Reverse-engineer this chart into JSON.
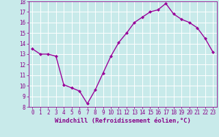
{
  "x": [
    0,
    1,
    2,
    3,
    4,
    5,
    6,
    7,
    8,
    9,
    10,
    11,
    12,
    13,
    14,
    15,
    16,
    17,
    18,
    19,
    20,
    21,
    22,
    23
  ],
  "y": [
    13.5,
    13.0,
    13.0,
    12.8,
    10.1,
    9.8,
    9.5,
    8.3,
    9.6,
    11.2,
    12.8,
    14.1,
    15.0,
    16.0,
    16.5,
    17.0,
    17.2,
    17.8,
    16.8,
    16.3,
    16.0,
    15.5,
    14.5,
    13.2
  ],
  "line_color": "#990099",
  "marker": "D",
  "marker_size": 2.0,
  "linewidth": 1.0,
  "xlabel": "Windchill (Refroidissement éolien,°C)",
  "ylim": [
    8,
    18
  ],
  "xlim": [
    -0.5,
    23.5
  ],
  "yticks": [
    8,
    9,
    10,
    11,
    12,
    13,
    14,
    15,
    16,
    17,
    18
  ],
  "xticks": [
    0,
    1,
    2,
    3,
    4,
    5,
    6,
    7,
    8,
    9,
    10,
    11,
    12,
    13,
    14,
    15,
    16,
    17,
    18,
    19,
    20,
    21,
    22,
    23
  ],
  "bg_color": "#c8eaea",
  "grid_color": "#ffffff",
  "xlabel_color": "#880088",
  "tick_color": "#880088",
  "tick_fontsize": 5.5,
  "xlabel_fontsize": 6.5
}
